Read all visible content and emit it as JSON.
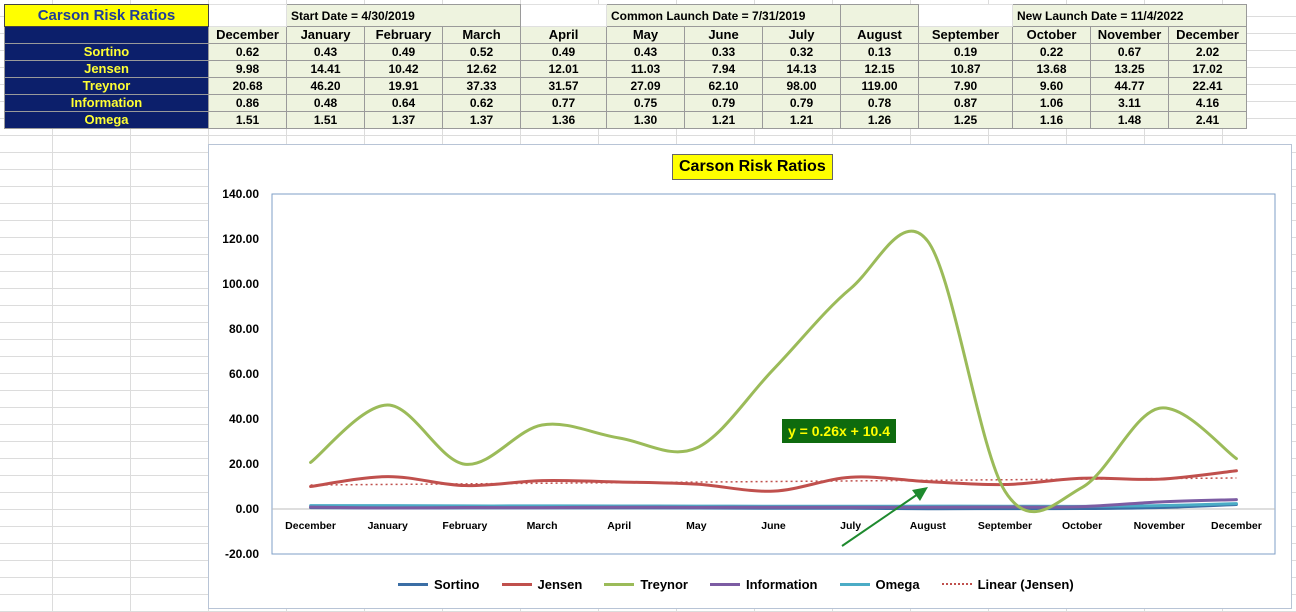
{
  "sheet": {
    "title": "Carson Risk Ratios",
    "banners": {
      "start": "Start Date = 4/30/2019",
      "common": "Common Launch Date = 7/31/2019",
      "new": "New Launch Date = 11/4/2022"
    },
    "months": [
      "December",
      "January",
      "February",
      "March",
      "April",
      "May",
      "June",
      "July",
      "August",
      "September",
      "October",
      "November",
      "December"
    ],
    "rows": [
      {
        "label": "Sortino",
        "values": [
          "0.62",
          "0.43",
          "0.49",
          "0.52",
          "0.49",
          "0.43",
          "0.33",
          "0.32",
          "0.13",
          "0.19",
          "0.22",
          "0.67",
          "2.02"
        ]
      },
      {
        "label": "Jensen",
        "values": [
          "9.98",
          "14.41",
          "10.42",
          "12.62",
          "12.01",
          "11.03",
          "7.94",
          "14.13",
          "12.15",
          "10.87",
          "13.68",
          "13.25",
          "17.02"
        ]
      },
      {
        "label": "Treynor",
        "values": [
          "20.68",
          "46.20",
          "19.91",
          "37.33",
          "31.57",
          "27.09",
          "62.10",
          "98.00",
          "119.00",
          "7.90",
          "9.60",
          "44.77",
          "22.41"
        ]
      },
      {
        "label": "Information",
        "values": [
          "0.86",
          "0.48",
          "0.64",
          "0.62",
          "0.77",
          "0.75",
          "0.79",
          "0.79",
          "0.78",
          "0.87",
          "1.06",
          "3.11",
          "4.16"
        ]
      },
      {
        "label": "Omega",
        "values": [
          "1.51",
          "1.51",
          "1.37",
          "1.37",
          "1.36",
          "1.30",
          "1.21",
          "1.21",
          "1.26",
          "1.25",
          "1.16",
          "1.48",
          "2.41"
        ]
      }
    ]
  },
  "chart_data": {
    "type": "line",
    "title": "Carson Risk Ratios",
    "categories": [
      "December",
      "January",
      "February",
      "March",
      "April",
      "May",
      "June",
      "July",
      "August",
      "September",
      "October",
      "November",
      "December"
    ],
    "ylim": [
      -20,
      140
    ],
    "yticks": [
      "140.00",
      "120.00",
      "100.00",
      "80.00",
      "60.00",
      "40.00",
      "20.00",
      "0.00",
      "-20.00"
    ],
    "ytick_values": [
      140,
      120,
      100,
      80,
      60,
      40,
      20,
      0,
      -20
    ],
    "grid": false,
    "legend_position": "bottom",
    "series": [
      {
        "name": "Sortino",
        "color": "#3b6ea5",
        "values": [
          0.62,
          0.43,
          0.49,
          0.52,
          0.49,
          0.43,
          0.33,
          0.32,
          0.13,
          0.19,
          0.22,
          0.67,
          2.02
        ]
      },
      {
        "name": "Jensen",
        "color": "#c0504d",
        "values": [
          9.98,
          14.41,
          10.42,
          12.62,
          12.01,
          11.03,
          7.94,
          14.13,
          12.15,
          10.87,
          13.68,
          13.25,
          17.02
        ]
      },
      {
        "name": "Treynor",
        "color": "#9bbb59",
        "values": [
          20.68,
          46.2,
          19.91,
          37.33,
          31.57,
          27.09,
          62.1,
          98.0,
          119.0,
          7.9,
          9.6,
          44.77,
          22.41
        ]
      },
      {
        "name": "Information",
        "color": "#7c5ca3",
        "values": [
          0.86,
          0.48,
          0.64,
          0.62,
          0.77,
          0.75,
          0.79,
          0.79,
          0.78,
          0.87,
          1.06,
          3.11,
          4.16
        ]
      },
      {
        "name": "Omega",
        "color": "#4bacc6",
        "values": [
          1.51,
          1.51,
          1.37,
          1.37,
          1.36,
          1.3,
          1.21,
          1.21,
          1.26,
          1.25,
          1.16,
          1.48,
          2.41
        ]
      }
    ],
    "trendline": {
      "name": "Linear (Jensen)",
      "color": "#c0504d",
      "slope": 0.26,
      "intercept": 10.4,
      "equation": "y = 0.26x + 10.4"
    },
    "annotation_arrow_color": "#1e8a2e"
  }
}
